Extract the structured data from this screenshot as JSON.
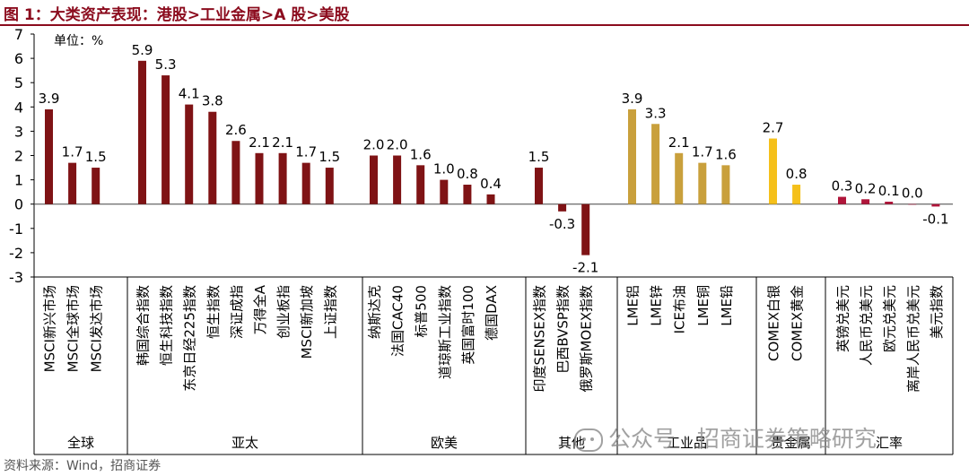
{
  "figure": {
    "title": "图 1：大类资产表现：港股>工业金属>A 股>美股",
    "source": "资料来源：Wind，招商证券",
    "watermark": "公众号 · 招商证券策略研究"
  },
  "colors": {
    "title": "#8b0b1d",
    "equity": "#7f1315",
    "metal": "#c9a03c",
    "precious": "#f5c01a",
    "fx": "#b0153a"
  },
  "chart_data": {
    "type": "bar",
    "unit_label": "单位：%",
    "ylim": [
      -3,
      7
    ],
    "yticks": [
      7,
      6,
      5,
      4,
      3,
      2,
      1,
      0,
      -1,
      -2,
      -3
    ],
    "grid": false,
    "categories": [
      "MSCI新兴市场",
      "MSCI全球市场",
      "MSCI发达市场",
      "韩国综合指数",
      "恒生科技指数",
      "东京日经225指数",
      "恒生指数",
      "深证成指",
      "万得全A",
      "创业板指",
      "MSCI新加坡",
      "上证指数",
      "纳斯达克",
      "法国CAC40",
      "标普500",
      "道琼斯工业指数",
      "英国富时100",
      "德国DAX",
      "印度SENSEX指数",
      "巴西BVSP指数",
      "俄罗斯MOEX指数",
      "LME铝",
      "LME锌",
      "ICE布油",
      "LME铜",
      "LME铅",
      "COMEX白银",
      "COMEX黄金",
      "英镑兑美元",
      "人民币兑美元",
      "欧元兑美元",
      "离岸人民币兑美元",
      "美元指数"
    ],
    "values": [
      3.9,
      1.7,
      1.5,
      5.9,
      5.3,
      4.1,
      3.8,
      2.6,
      2.1,
      2.1,
      1.7,
      1.5,
      2.0,
      2.0,
      1.6,
      1.0,
      0.8,
      0.4,
      1.5,
      -0.3,
      -2.1,
      3.9,
      3.3,
      2.1,
      1.7,
      1.6,
      2.7,
      0.8,
      0.3,
      0.2,
      0.1,
      0.0,
      -0.1
    ],
    "groups": [
      {
        "name": "全球",
        "count": 3,
        "color": "equity"
      },
      {
        "name": "亚太",
        "count": 9,
        "color": "equity"
      },
      {
        "name": "欧美",
        "count": 6,
        "color": "equity"
      },
      {
        "name": "其他",
        "count": 3,
        "color": "equity"
      },
      {
        "name": "工业品",
        "count": 5,
        "color": "metal"
      },
      {
        "name": "贵金属",
        "count": 2,
        "color": "precious"
      },
      {
        "name": "汇率",
        "count": 5,
        "color": "fx"
      }
    ]
  }
}
